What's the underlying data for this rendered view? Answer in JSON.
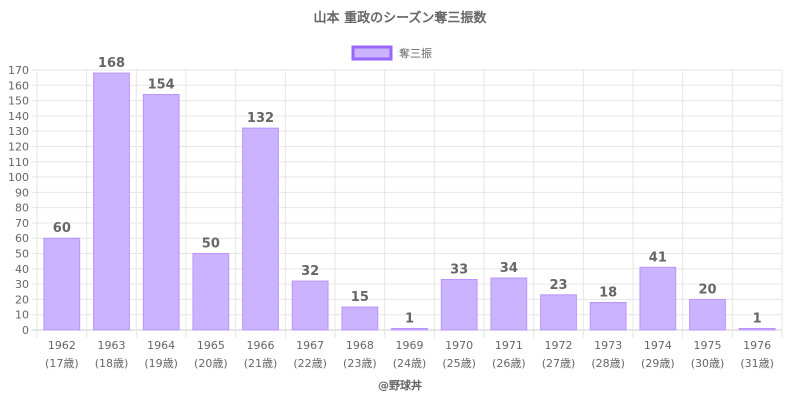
{
  "chart_data": {
    "type": "bar",
    "title": "山本 重政のシーズン奪三振数",
    "legend": {
      "label": "奪三振",
      "position": "top"
    },
    "categories": [
      "1962",
      "1963",
      "1964",
      "1965",
      "1966",
      "1967",
      "1968",
      "1969",
      "1970",
      "1971",
      "1972",
      "1973",
      "1974",
      "1975",
      "1976"
    ],
    "sublabels": [
      "(17歳)",
      "(18歳)",
      "(19歳)",
      "(20歳)",
      "(21歳)",
      "(22歳)",
      "(23歳)",
      "(24歳)",
      "(25歳)",
      "(26歳)",
      "(27歳)",
      "(28歳)",
      "(29歳)",
      "(30歳)",
      "(31歳)"
    ],
    "values": [
      60,
      168,
      154,
      50,
      132,
      32,
      15,
      1,
      33,
      34,
      23,
      18,
      41,
      20,
      1
    ],
    "ylim": [
      0,
      170
    ],
    "ytick_step": 10,
    "grid": true,
    "xlabel": "",
    "ylabel": ""
  },
  "footer": "@野球丼",
  "colors": {
    "bar_fill": "#ccb3ff",
    "bar_stroke": "#b994ff",
    "legend_stroke": "#9966ff",
    "text": "#666666",
    "grid": "#e6e6e6"
  }
}
